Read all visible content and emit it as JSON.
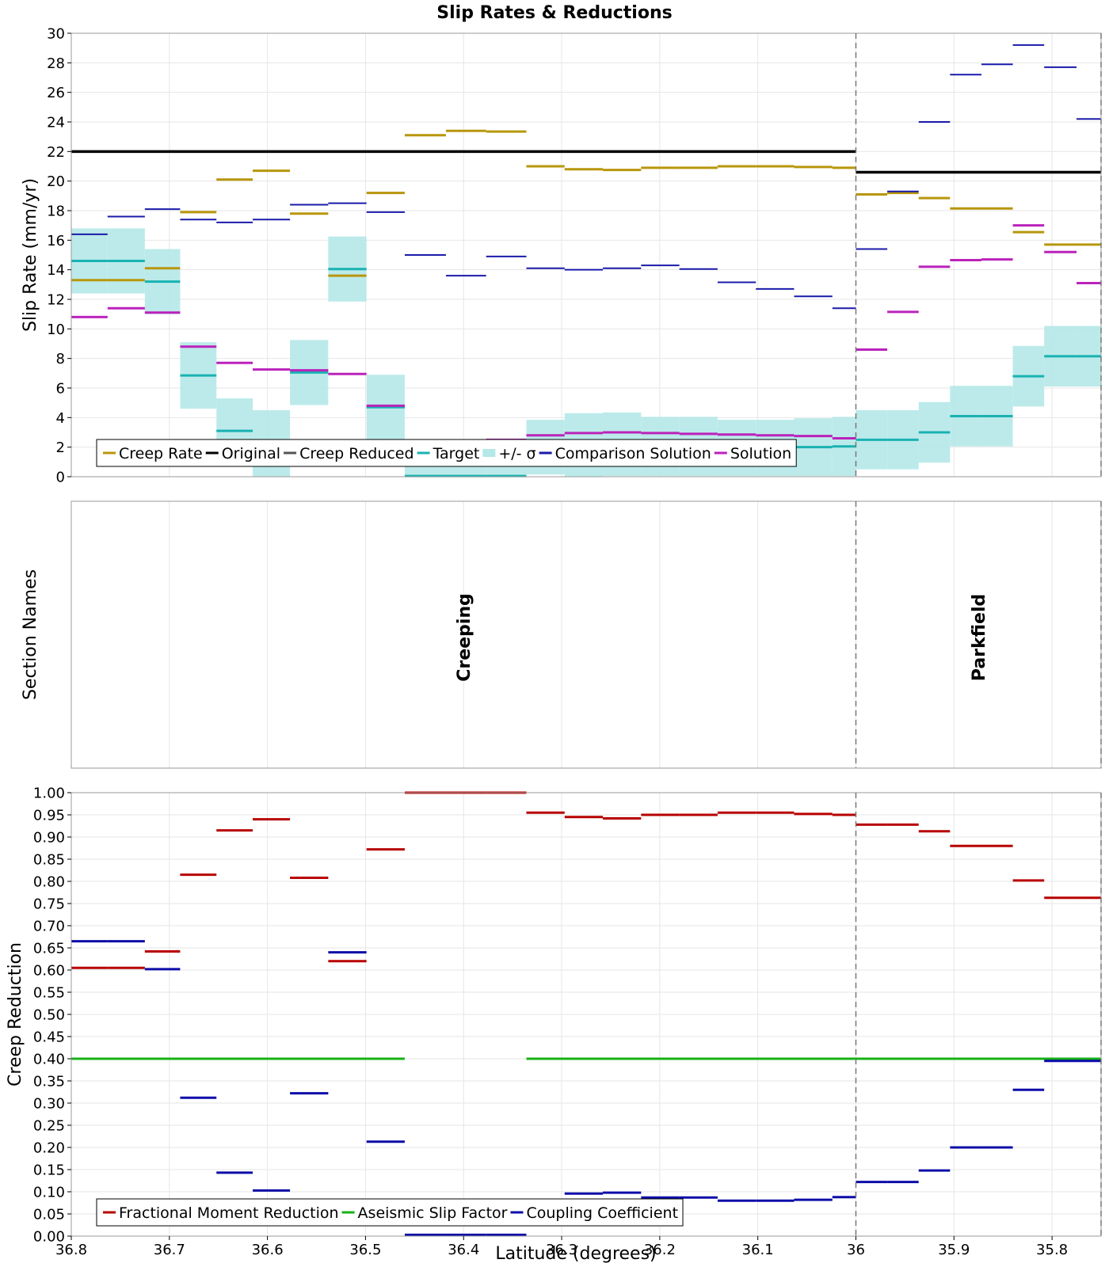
{
  "chart_data": {
    "type": "line",
    "title": "Slip Rates & Reductions",
    "xlabel": "Latitude (degrees)",
    "xlim": [
      36.8,
      35.75
    ],
    "x_ticks": [
      "36.8",
      "36.7",
      "36.6",
      "36.5",
      "36.4",
      "36.3",
      "36.2",
      "36.1",
      "36",
      "35.9",
      "35.8"
    ],
    "x_tick_values": [
      36.8,
      36.7,
      36.6,
      36.5,
      36.4,
      36.3,
      36.2,
      36.1,
      36.0,
      35.9,
      35.8
    ],
    "dashed_lines_x": [
      36.0,
      35.75
    ],
    "sections": [
      {
        "x_start": 36.8,
        "x_end": 36.763,
        "creep_rate": 13.3,
        "target": 14.6,
        "sigma": 2.2,
        "comparison": 16.4,
        "solution": 10.8,
        "frac_reduction": 0.605,
        "coupling": 0.665
      },
      {
        "x_start": 36.763,
        "x_end": 36.725,
        "creep_rate": 13.3,
        "target": 14.6,
        "sigma": 2.2,
        "comparison": 17.6,
        "solution": 11.4,
        "frac_reduction": 0.605,
        "coupling": 0.665
      },
      {
        "x_start": 36.725,
        "x_end": 36.689,
        "creep_rate": 14.1,
        "target": 13.2,
        "sigma": 2.2,
        "comparison": 18.1,
        "solution": 11.1,
        "frac_reduction": 0.642,
        "coupling": 0.602
      },
      {
        "x_start": 36.689,
        "x_end": 36.652,
        "creep_rate": 17.9,
        "target": 6.85,
        "sigma": 2.25,
        "comparison": 17.4,
        "solution": 8.8,
        "frac_reduction": 0.815,
        "coupling": 0.312
      },
      {
        "x_start": 36.652,
        "x_end": 36.615,
        "creep_rate": 20.1,
        "target": 3.1,
        "sigma": 2.2,
        "comparison": 17.2,
        "solution": 7.7,
        "frac_reduction": 0.915,
        "coupling": 0.143
      },
      {
        "x_start": 36.615,
        "x_end": 36.577,
        "creep_rate": 20.7,
        "target": 2.25,
        "sigma": 2.25,
        "comparison": 17.4,
        "solution": 7.25,
        "frac_reduction": 0.94,
        "coupling": 0.103
      },
      {
        "x_start": 36.577,
        "x_end": 36.538,
        "creep_rate": 17.8,
        "target": 7.05,
        "sigma": 2.2,
        "comparison": 18.4,
        "solution": 7.2,
        "frac_reduction": 0.808,
        "coupling": 0.322
      },
      {
        "x_start": 36.538,
        "x_end": 36.499,
        "creep_rate": 13.6,
        "target": 14.05,
        "sigma": 2.2,
        "comparison": 18.5,
        "solution": 6.95,
        "frac_reduction": 0.62,
        "coupling": 0.64
      },
      {
        "x_start": 36.499,
        "x_end": 36.46,
        "creep_rate": 19.2,
        "target": 4.7,
        "sigma": 2.2,
        "comparison": 17.9,
        "solution": 4.8,
        "frac_reduction": 0.872,
        "coupling": 0.213
      },
      {
        "x_start": 36.46,
        "x_end": 36.418,
        "creep_rate": 23.1,
        "target": 0.05,
        "sigma": 2.0,
        "comparison": 15.0,
        "solution": 2.1,
        "frac_reduction": 1.0,
        "coupling": 0.003
      },
      {
        "x_start": 36.418,
        "x_end": 36.377,
        "creep_rate": 23.4,
        "target": 0.05,
        "sigma": 2.0,
        "comparison": 13.6,
        "solution": 1.9,
        "frac_reduction": 1.0,
        "coupling": 0.003
      },
      {
        "x_start": 36.377,
        "x_end": 36.336,
        "creep_rate": 23.35,
        "target": 0.05,
        "sigma": 2.0,
        "comparison": 14.9,
        "solution": 2.5,
        "frac_reduction": 1.0,
        "coupling": 0.003
      },
      {
        "x_start": 36.336,
        "x_end": 36.297,
        "creep_rate": 21.0,
        "target": 2.0,
        "sigma": 1.85,
        "comparison": 14.1,
        "solution": 2.8,
        "frac_reduction": 0.955,
        "coupling": 0.078
      },
      {
        "x_start": 36.297,
        "x_end": 36.258,
        "creep_rate": 20.8,
        "target": 2.15,
        "sigma": 2.15,
        "comparison": 14.0,
        "solution": 2.95,
        "frac_reduction": 0.945,
        "coupling": 0.096
      },
      {
        "x_start": 36.258,
        "x_end": 36.219,
        "creep_rate": 20.75,
        "target": 2.2,
        "sigma": 2.15,
        "comparison": 14.1,
        "solution": 3.0,
        "frac_reduction": 0.942,
        "coupling": 0.098
      },
      {
        "x_start": 36.219,
        "x_end": 36.18,
        "creep_rate": 20.9,
        "target": 2.05,
        "sigma": 2.0,
        "comparison": 14.3,
        "solution": 2.95,
        "frac_reduction": 0.95,
        "coupling": 0.087
      },
      {
        "x_start": 36.18,
        "x_end": 36.141,
        "creep_rate": 20.9,
        "target": 2.05,
        "sigma": 2.0,
        "comparison": 14.05,
        "solution": 2.9,
        "frac_reduction": 0.95,
        "coupling": 0.087
      },
      {
        "x_start": 36.141,
        "x_end": 36.102,
        "creep_rate": 21.0,
        "target": 1.95,
        "sigma": 1.9,
        "comparison": 13.15,
        "solution": 2.85,
        "frac_reduction": 0.955,
        "coupling": 0.08
      },
      {
        "x_start": 36.102,
        "x_end": 36.063,
        "creep_rate": 21.0,
        "target": 1.95,
        "sigma": 1.9,
        "comparison": 12.7,
        "solution": 2.8,
        "frac_reduction": 0.955,
        "coupling": 0.08
      },
      {
        "x_start": 36.063,
        "x_end": 36.024,
        "creep_rate": 20.95,
        "target": 2.0,
        "sigma": 1.95,
        "comparison": 12.2,
        "solution": 2.75,
        "frac_reduction": 0.952,
        "coupling": 0.082
      },
      {
        "x_start": 36.024,
        "x_end": 36.0,
        "creep_rate": 20.9,
        "target": 2.05,
        "sigma": 2.0,
        "comparison": 11.4,
        "solution": 2.6,
        "frac_reduction": 0.95,
        "coupling": 0.088
      },
      {
        "x_start": 36.0,
        "x_end": 35.968,
        "creep_rate": 19.1,
        "target": 2.5,
        "sigma": 2.0,
        "comparison": 15.4,
        "solution": 8.6,
        "frac_reduction": 0.928,
        "coupling": 0.122
      },
      {
        "x_start": 35.968,
        "x_end": 35.936,
        "creep_rate": 19.2,
        "target": 2.5,
        "sigma": 2.0,
        "comparison": 19.3,
        "solution": 11.15,
        "frac_reduction": 0.928,
        "coupling": 0.122
      },
      {
        "x_start": 35.936,
        "x_end": 35.904,
        "creep_rate": 18.85,
        "target": 3.0,
        "sigma": 2.05,
        "comparison": 24.0,
        "solution": 14.2,
        "frac_reduction": 0.913,
        "coupling": 0.148
      },
      {
        "x_start": 35.904,
        "x_end": 35.872,
        "creep_rate": 18.15,
        "target": 4.1,
        "sigma": 2.05,
        "comparison": 27.2,
        "solution": 14.65,
        "frac_reduction": 0.88,
        "coupling": 0.2
      },
      {
        "x_start": 35.872,
        "x_end": 35.84,
        "creep_rate": 18.15,
        "target": 4.1,
        "sigma": 2.05,
        "comparison": 27.9,
        "solution": 14.7,
        "frac_reduction": 0.88,
        "coupling": 0.2
      },
      {
        "x_start": 35.84,
        "x_end": 35.808,
        "creep_rate": 16.55,
        "target": 6.8,
        "sigma": 2.05,
        "comparison": 29.2,
        "solution": 17.0,
        "frac_reduction": 0.802,
        "coupling": 0.33
      },
      {
        "x_start": 35.808,
        "x_end": 35.775,
        "creep_rate": 15.7,
        "target": 8.15,
        "sigma": 2.05,
        "comparison": 27.7,
        "solution": 15.2,
        "frac_reduction": 0.763,
        "coupling": 0.395
      },
      {
        "x_start": 35.775,
        "x_end": 35.75,
        "creep_rate": 15.7,
        "target": 8.15,
        "sigma": 2.05,
        "comparison": 24.2,
        "solution": 13.1,
        "frac_reduction": 0.763,
        "coupling": 0.395
      }
    ],
    "panels": [
      {
        "id": "slip-rates",
        "ylabel": "Slip Rate (mm/yr)",
        "ylim": [
          0,
          30
        ],
        "y_ticks": [
          "0",
          "2",
          "4",
          "6",
          "8",
          "10",
          "12",
          "14",
          "16",
          "18",
          "20",
          "22",
          "24",
          "26",
          "28",
          "30"
        ],
        "original": [
          {
            "x_start": 36.8,
            "x_end": 36.0,
            "value": 22.0
          },
          {
            "x_start": 36.0,
            "x_end": 35.75,
            "value": 20.6
          }
        ],
        "legend": [
          "Creep Rate",
          "Original",
          "Creep Reduced",
          "Target",
          "+/- σ",
          "Comparison Solution",
          "Solution"
        ]
      },
      {
        "id": "section-names",
        "ylabel": "Section Names",
        "labels": [
          {
            "text": "Creeping",
            "x": 36.4
          },
          {
            "text": "Parkfield",
            "x": 35.875
          }
        ]
      },
      {
        "id": "creep-reduction",
        "ylabel": "Creep Reduction",
        "ylim": [
          0,
          1.0
        ],
        "y_ticks": [
          "0.00",
          "0.05",
          "0.10",
          "0.15",
          "0.20",
          "0.25",
          "0.30",
          "0.35",
          "0.40",
          "0.45",
          "0.50",
          "0.55",
          "0.60",
          "0.65",
          "0.70",
          "0.75",
          "0.80",
          "0.85",
          "0.90",
          "0.95",
          "1.00"
        ],
        "aseismic": [
          {
            "x_start": 36.8,
            "x_end": 36.46,
            "value": 0.4
          },
          {
            "x_start": 36.336,
            "x_end": 35.75,
            "value": 0.4
          }
        ],
        "legend": [
          "Fractional Moment Reduction",
          "Aseismic Slip Factor",
          "Coupling Coefficient"
        ]
      }
    ],
    "colors": {
      "creep_rate": "#b8960c",
      "original": "#000000",
      "creep_reduced": "#555555",
      "target": "#19b2b2",
      "sigma_fill": "#b5e8e8",
      "comparison": "#1a1aaa",
      "solution": "#bb22bb",
      "frac_reduction": "#b80000",
      "aseismic": "#16b216",
      "coupling": "#0c0ca8"
    }
  }
}
